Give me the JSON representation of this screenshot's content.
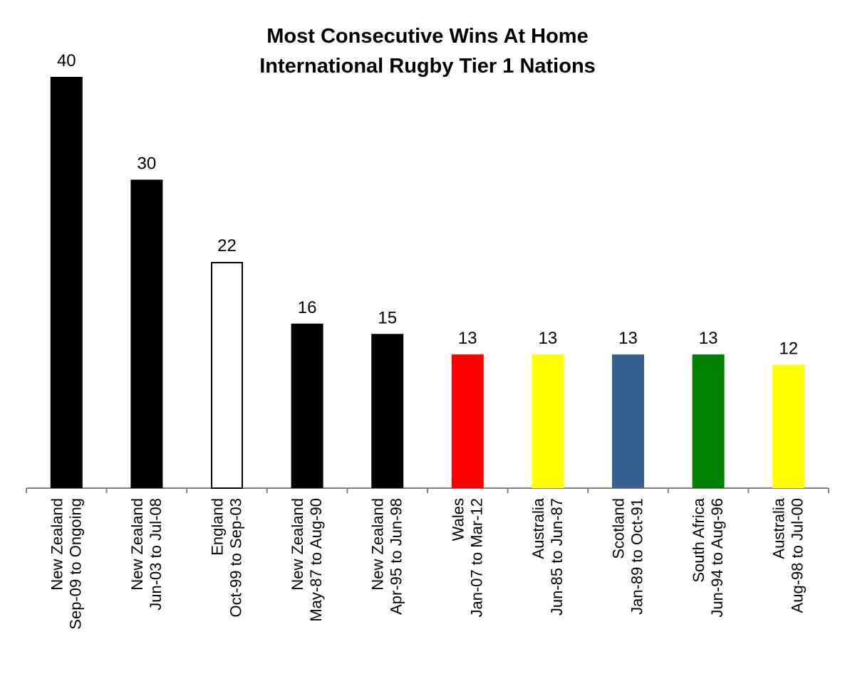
{
  "chart_data": {
    "type": "bar",
    "title": [
      "Most Consecutive Wins At Home",
      "International Rugby Tier 1 Nations"
    ],
    "categories": [
      [
        "New Zealand",
        "Sep-09 to Ongoing"
      ],
      [
        "New Zealand",
        "Jun-03 to Jul-08"
      ],
      [
        "England",
        "Oct-99 to Sep-03"
      ],
      [
        "New Zealand",
        "May-87 to Aug-90"
      ],
      [
        "New Zealand",
        "Apr-95 to Jun-98"
      ],
      [
        "Wales",
        "Jan-07 to Mar-12"
      ],
      [
        "Australia",
        "Jun-85 to Jun-87"
      ],
      [
        "Scotland",
        "Jan-89 to Oct-91"
      ],
      [
        "South Africa",
        "Jun-94 to Aug-96"
      ],
      [
        "Australia",
        "Aug-98 to Jul-00"
      ]
    ],
    "values": [
      40,
      30,
      22,
      16,
      15,
      13,
      13,
      13,
      13,
      12
    ],
    "colors": [
      "#000000",
      "#000000",
      "#ffffff",
      "#000000",
      "#000000",
      "#ff0000",
      "#ffff00",
      "#376092",
      "#008000",
      "#ffff00"
    ],
    "ylim": [
      0,
      40
    ],
    "grid": false,
    "data_labels": true
  }
}
